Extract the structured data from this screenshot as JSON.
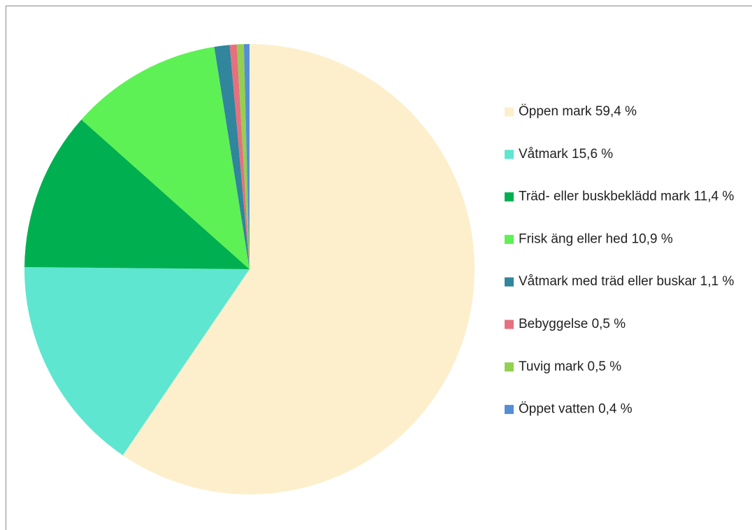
{
  "chart_data": {
    "type": "pie",
    "categories": [
      "Öppen mark",
      "Våtmark",
      "Träd- eller buskbeklädd mark",
      "Frisk äng eller hed",
      "Våtmark med träd eller buskar",
      "Bebyggelse",
      "Tuvig mark",
      "Öppet vatten"
    ],
    "values": [
      59.4,
      15.6,
      11.4,
      10.9,
      1.1,
      0.5,
      0.5,
      0.4
    ],
    "value_labels": [
      "59,4 %",
      "15,6 %",
      "11,4 %",
      "10,9 %",
      "1,1 %",
      "0,5 %",
      "0,5 %",
      "0,4 %"
    ],
    "colors": [
      "#fdefcb",
      "#5ee6d0",
      "#00b050",
      "#5ef155",
      "#31859c",
      "#e6707e",
      "#92d050",
      "#558ed5"
    ],
    "legend": "right"
  }
}
